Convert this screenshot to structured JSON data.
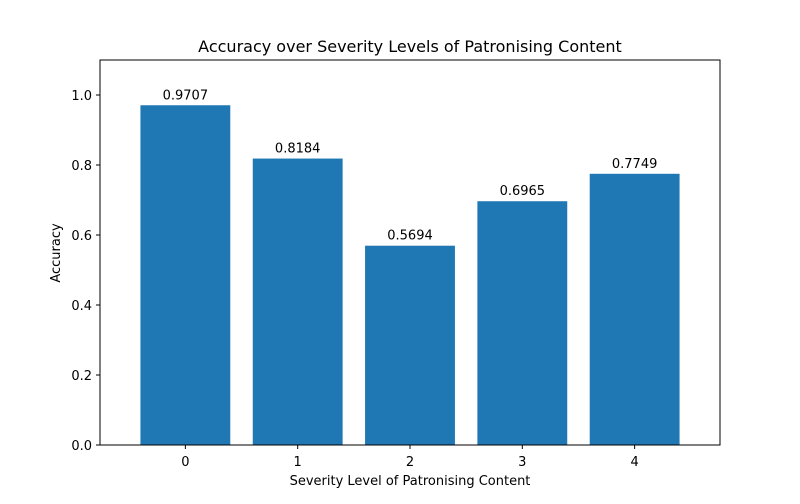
{
  "chart_data": {
    "type": "bar",
    "title": "Accuracy over Severity Levels of Patronising Content",
    "xlabel": "Severity Level of Patronising Content",
    "ylabel": "Accuracy",
    "categories": [
      "0",
      "1",
      "2",
      "3",
      "4"
    ],
    "values": [
      0.9707,
      0.8184,
      0.5694,
      0.6965,
      0.7749
    ],
    "value_labels": [
      "0.9707",
      "0.8184",
      "0.5694",
      "0.6965",
      "0.7749"
    ],
    "ylim": [
      0,
      1.1
    ],
    "yticks": [
      0.0,
      0.2,
      0.4,
      0.6,
      0.8,
      1.0
    ],
    "ytick_labels": [
      "0.0",
      "0.2",
      "0.4",
      "0.6",
      "0.8",
      "1.0"
    ],
    "grid": false,
    "legend": "none",
    "bar_color": "#1f77b4"
  }
}
